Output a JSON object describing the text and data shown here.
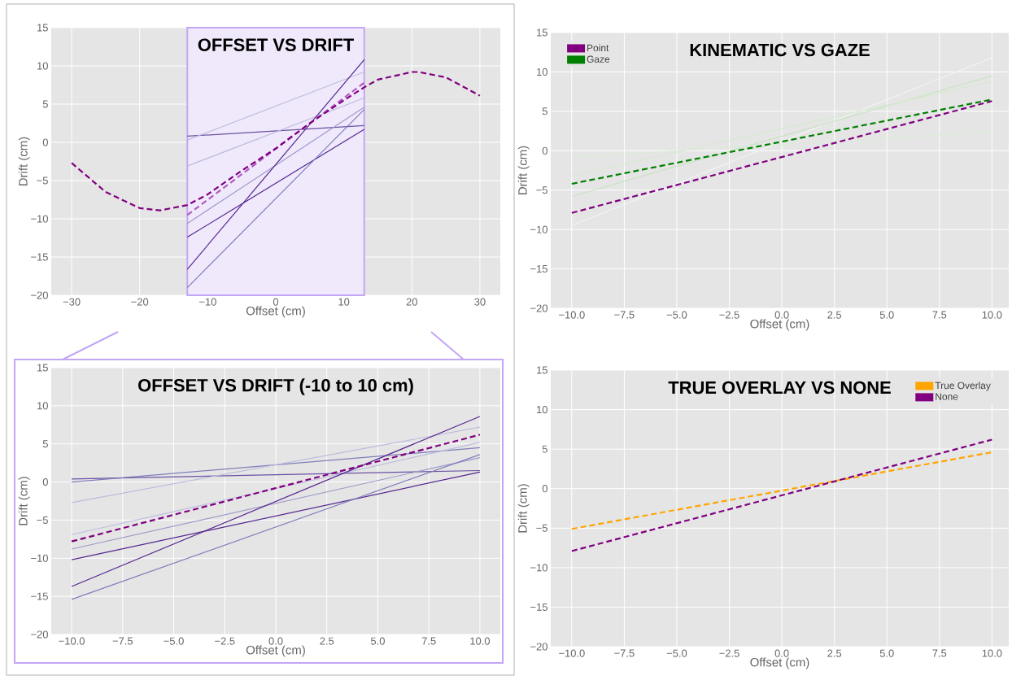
{
  "chart_data": [
    {
      "type": "line",
      "title": "OFFSET VS DRIFT",
      "xlabel": "Offset (cm)",
      "ylabel": "Drift (cm)",
      "xlim": [
        -33,
        33
      ],
      "ylim": [
        -20,
        15
      ],
      "xticks": [
        {
          "value": -30,
          "label": "−30"
        },
        {
          "value": -20,
          "label": "−20"
        },
        {
          "value": -10,
          "label": "−10"
        },
        0,
        10,
        20,
        30
      ],
      "yticks": [
        {
          "value": -20,
          "label": "−20"
        },
        {
          "value": -15,
          "label": "−15"
        },
        {
          "value": -10,
          "label": "−10"
        },
        {
          "value": -5,
          "label": "−5"
        },
        0,
        5,
        10,
        15
      ],
      "grid": true,
      "bands": [
        {
          "axis": "x",
          "from": -13,
          "to": 13,
          "color": "#c3a6f5"
        }
      ],
      "series": [
        {
          "color": "#6a51a3",
          "line_style": "solid",
          "x": [
            -13,
            13
          ],
          "values": [
            0.8,
            2.2
          ]
        },
        {
          "color": "#bcbddc",
          "line_style": "solid",
          "x": [
            -13,
            13
          ],
          "values": [
            0.3,
            9.2
          ]
        },
        {
          "color": "#bcbddc",
          "line_style": "solid",
          "x": [
            -13,
            13
          ],
          "values": [
            -3.1,
            5.8
          ]
        },
        {
          "color": "#9e9ac8",
          "line_style": "solid",
          "x": [
            -13,
            13
          ],
          "values": [
            -10.6,
            4.6
          ]
        },
        {
          "color": "#54278f",
          "line_style": "solid",
          "x": [
            -13,
            13
          ],
          "values": [
            -12.4,
            1.7
          ]
        },
        {
          "color": "#54278f",
          "line_style": "solid",
          "x": [
            -13,
            13
          ],
          "values": [
            -16.6,
            10.8
          ]
        },
        {
          "color": "#807dba",
          "line_style": "solid",
          "x": [
            -13,
            13
          ],
          "values": [
            -19,
            4.3
          ]
        },
        {
          "color": "#b05cc0",
          "line_style": "dashed",
          "x": [
            -13,
            13
          ],
          "values": [
            -9.5,
            7.8
          ]
        },
        {
          "color": "#800080",
          "line_style": "dashed",
          "x": [
            -30,
            -25,
            -20,
            -17,
            -13,
            -10,
            -5,
            0,
            5,
            10,
            13,
            15,
            20,
            21,
            25,
            30
          ],
          "values": [
            -2.7,
            -6.5,
            -8.6,
            -8.9,
            -8.2,
            -6.8,
            -3.7,
            -0.8,
            2.5,
            5.5,
            7.2,
            8.2,
            9.2,
            9.2,
            8.5,
            6.1
          ]
        }
      ]
    },
    {
      "type": "line",
      "title": "OFFSET VS DRIFT (-10 to 10 cm)",
      "xlabel": "Offset (cm)",
      "ylabel": "Drift (cm)",
      "xlim": [
        -11,
        11
      ],
      "ylim": [
        -20,
        15
      ],
      "xticks": [
        {
          "value": -10,
          "label": "−10.0"
        },
        {
          "value": -7.5,
          "label": "−7.5"
        },
        {
          "value": -5,
          "label": "−5.0"
        },
        {
          "value": -2.5,
          "label": "−2.5"
        },
        {
          "value": 0,
          "label": "0.0"
        },
        2.5,
        {
          "value": 5,
          "label": "5.0"
        },
        7.5,
        {
          "value": 10,
          "label": "10.0"
        }
      ],
      "yticks": [
        {
          "value": -20,
          "label": "−20"
        },
        {
          "value": -15,
          "label": "−15"
        },
        {
          "value": -10,
          "label": "−10"
        },
        {
          "value": -5,
          "label": "−5"
        },
        0,
        5,
        10,
        15
      ],
      "grid": true,
      "series": [
        {
          "color": "#6a51a3",
          "line_style": "solid",
          "x": [
            -10,
            10
          ],
          "values": [
            0.4,
            1.5
          ]
        },
        {
          "color": "#807dba",
          "line_style": "solid",
          "x": [
            -10,
            10
          ],
          "values": [
            0,
            4.5
          ]
        },
        {
          "color": "#bcbddc",
          "line_style": "solid",
          "x": [
            -10,
            10
          ],
          "values": [
            -2.7,
            7.2
          ]
        },
        {
          "color": "#bcbddc",
          "line_style": "solid",
          "x": [
            -10,
            10
          ],
          "values": [
            -6.9,
            5.2
          ]
        },
        {
          "color": "#9e9ac8",
          "line_style": "solid",
          "x": [
            -10,
            10
          ],
          "values": [
            -8.8,
            3.2
          ]
        },
        {
          "color": "#54278f",
          "line_style": "solid",
          "x": [
            -10,
            10
          ],
          "values": [
            -10.2,
            1.3
          ]
        },
        {
          "color": "#54278f",
          "line_style": "solid",
          "x": [
            -10,
            10
          ],
          "values": [
            -13.7,
            8.6
          ]
        },
        {
          "color": "#807dba",
          "line_style": "solid",
          "x": [
            -10,
            10
          ],
          "values": [
            -15.4,
            3.6
          ]
        },
        {
          "color": "#800080",
          "line_style": "dashed",
          "x": [
            -10,
            10
          ],
          "values": [
            -7.8,
            6.2
          ]
        }
      ]
    },
    {
      "type": "line",
      "title": "KINEMATIC VS GAZE",
      "xlabel": "Offset (cm)",
      "ylabel": "Drift (cm)",
      "xlim": [
        -11,
        10.8
      ],
      "ylim": [
        -20,
        15
      ],
      "xticks": [
        {
          "value": -10,
          "label": "−10.0"
        },
        {
          "value": -7.5,
          "label": "−7.5"
        },
        {
          "value": -5,
          "label": "−5.0"
        },
        {
          "value": -2.5,
          "label": "−2.5"
        },
        {
          "value": 0,
          "label": "0.0"
        },
        2.5,
        {
          "value": 5,
          "label": "5.0"
        },
        7.5,
        {
          "value": 10,
          "label": "10.0"
        }
      ],
      "yticks": [
        {
          "value": -20,
          "label": "−20"
        },
        {
          "value": -15,
          "label": "−15"
        },
        {
          "value": -10,
          "label": "−10"
        },
        {
          "value": -5,
          "label": "−5"
        },
        0,
        5,
        10,
        15
      ],
      "grid": true,
      "legend": "top left",
      "series": [
        {
          "color": "#f4f4f4",
          "line_style": "solid",
          "x": [
            -10,
            10
          ],
          "values": [
            -9.5,
            11.8
          ]
        },
        {
          "color": "#c7e3c0",
          "line_style": "solid",
          "x": [
            -10,
            10
          ],
          "values": [
            -5.8,
            9.5
          ]
        },
        {
          "color": "#d5ead0",
          "line_style": "solid",
          "x": [
            -10,
            10
          ],
          "values": [
            -3.2,
            8.8
          ]
        },
        {
          "color": "#dcebd8",
          "line_style": "solid",
          "x": [
            -10,
            10
          ],
          "values": [
            -0.8,
            2.4
          ]
        },
        {
          "name": "Point",
          "color": "#800080",
          "line_style": "dashed",
          "x": [
            -10,
            10
          ],
          "values": [
            -7.9,
            6.3
          ]
        },
        {
          "name": "Gaze",
          "color": "#008000",
          "line_style": "dashed",
          "x": [
            -10,
            10
          ],
          "values": [
            -4.2,
            6.5
          ]
        }
      ]
    },
    {
      "type": "line",
      "title": "TRUE OVERLAY VS NONE",
      "xlabel": "Offset (cm)",
      "ylabel": "Drift (cm)",
      "xlim": [
        -11,
        10.8
      ],
      "ylim": [
        -20,
        15
      ],
      "xticks": [
        {
          "value": -10,
          "label": "−10.0"
        },
        {
          "value": -7.5,
          "label": "−7.5"
        },
        {
          "value": -5,
          "label": "−5.0"
        },
        {
          "value": -2.5,
          "label": "−2.5"
        },
        {
          "value": 0,
          "label": "0.0"
        },
        2.5,
        {
          "value": 5,
          "label": "5.0"
        },
        7.5,
        {
          "value": 10,
          "label": "10.0"
        }
      ],
      "yticks": [
        {
          "value": -20,
          "label": "−20"
        },
        {
          "value": -15,
          "label": "−15"
        },
        {
          "value": -10,
          "label": "−10"
        },
        {
          "value": -5,
          "label": "−5"
        },
        0,
        5,
        10,
        15
      ],
      "grid": true,
      "legend": "top right",
      "series": [
        {
          "name": "True Overlay",
          "color": "#ffa500",
          "line_style": "dashed",
          "x": [
            -10,
            10
          ],
          "values": [
            -5.1,
            4.6
          ]
        },
        {
          "name": "None",
          "color": "#800080",
          "line_style": "dashed",
          "x": [
            -10,
            10
          ],
          "values": [
            -7.9,
            6.2
          ]
        }
      ]
    }
  ]
}
